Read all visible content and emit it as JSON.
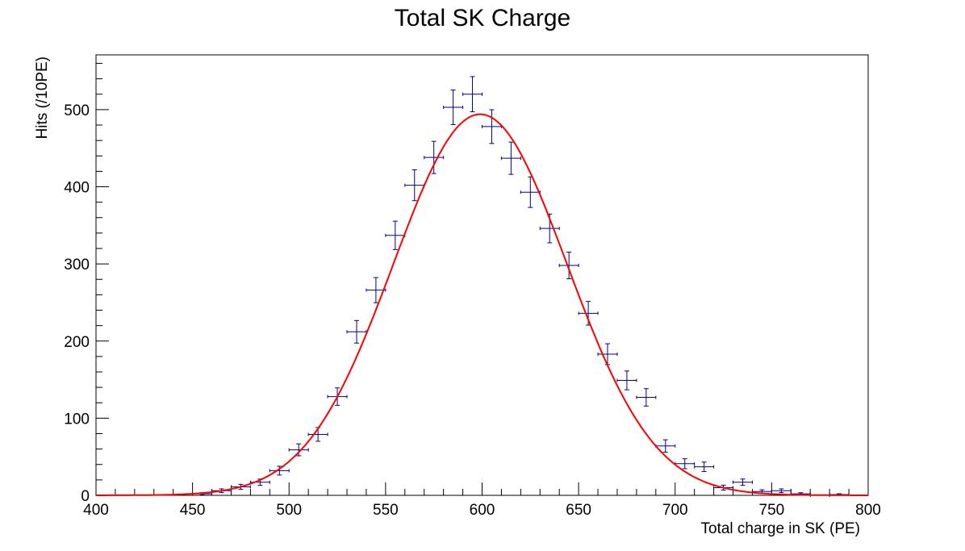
{
  "chart_data": {
    "type": "scatter",
    "title": "Total SK Charge",
    "xlabel": "Total charge in SK (PE)",
    "ylabel": "Hits (/10PE)",
    "xlim": [
      400,
      800
    ],
    "ylim": [
      0,
      571
    ],
    "x_ticks": [
      400,
      450,
      500,
      550,
      600,
      650,
      700,
      750,
      800
    ],
    "x_tick_labels": [
      "400",
      "450",
      "500",
      "550",
      "600",
      "650",
      "700",
      "750",
      "800"
    ],
    "y_ticks": [
      0,
      100,
      200,
      300,
      400,
      500
    ],
    "y_tick_labels": [
      "0",
      "100",
      "200",
      "300",
      "400",
      "500"
    ],
    "grid": false,
    "legend": "none",
    "colors": {
      "data": "#000080",
      "fit": "#ff0000",
      "axes": "#000000"
    },
    "series": [
      {
        "kind": "histogram_points",
        "bin_width": 10,
        "x": [
          455,
          465,
          475,
          485,
          495,
          505,
          515,
          525,
          535,
          545,
          555,
          565,
          575,
          585,
          595,
          605,
          615,
          625,
          635,
          645,
          655,
          665,
          675,
          685,
          695,
          705,
          715,
          725,
          735,
          745,
          755,
          765,
          775,
          785
        ],
        "y": [
          2,
          6,
          11,
          17,
          32,
          59,
          79,
          128,
          212,
          266,
          337,
          402,
          438,
          503,
          520,
          478,
          437,
          393,
          346,
          298,
          236,
          183,
          149,
          127,
          64,
          41,
          37,
          10,
          17,
          5,
          6,
          2,
          0,
          1
        ],
        "yerr": [
          1.4,
          2.4,
          3.3,
          4.1,
          5.7,
          7.7,
          8.9,
          11.3,
          14.6,
          16.3,
          18.4,
          20.0,
          20.9,
          22.4,
          22.8,
          21.9,
          20.9,
          19.8,
          18.6,
          17.3,
          15.4,
          13.5,
          12.2,
          11.3,
          8.0,
          6.4,
          6.1,
          3.2,
          4.1,
          2.2,
          2.4,
          1.4,
          0,
          1.0
        ]
      },
      {
        "kind": "fit_curve",
        "function": "gaus",
        "constant": 494,
        "mean": 599,
        "sigma": 45
      }
    ]
  }
}
